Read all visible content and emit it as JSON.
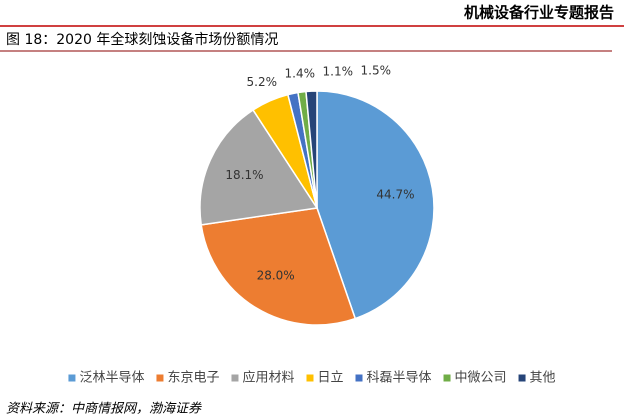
{
  "header": {
    "title": "机械设备行业专题报告"
  },
  "chart_data": {
    "type": "pie",
    "title": "图 18：2020 年全球刻蚀设备市场份额情况",
    "categories": [
      "泛林半导体",
      "东京电子",
      "应用材料",
      "日立",
      "科磊半导体",
      "中微公司",
      "其他"
    ],
    "values": [
      44.7,
      28.0,
      18.1,
      5.2,
      1.4,
      1.1,
      1.5
    ],
    "value_labels": [
      "44.7%",
      "28.0%",
      "18.1%",
      "5.2%",
      "1.4%",
      "1.1%",
      "1.5%"
    ],
    "colors": [
      "#5b9bd5",
      "#ed7d31",
      "#a5a5a5",
      "#ffc000",
      "#4472c4",
      "#70ad47",
      "#264478"
    ],
    "legend": "bottom"
  },
  "source": "资料来源：中商情报网，渤海证券"
}
